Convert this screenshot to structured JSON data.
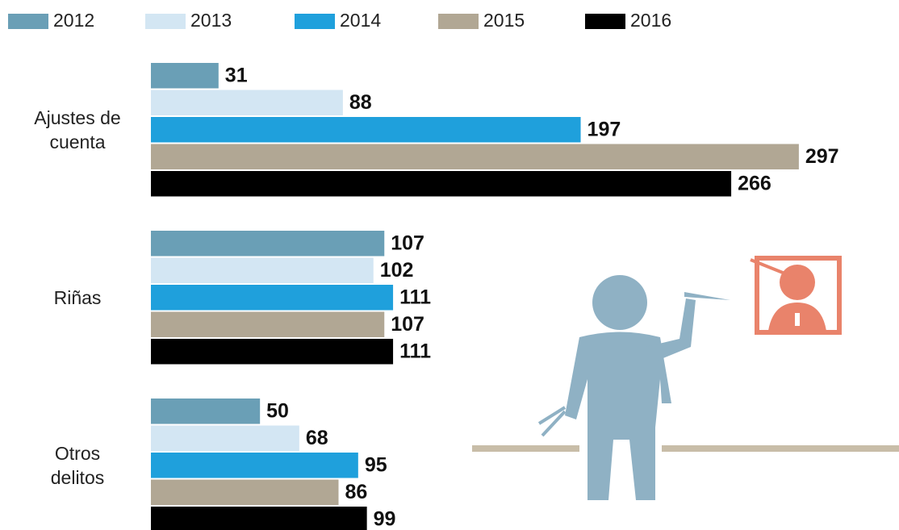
{
  "chart_data": {
    "type": "bar",
    "orientation": "horizontal",
    "categories": [
      "Ajustes de cuenta",
      "Riñas",
      "Otros delitos"
    ],
    "series": [
      {
        "name": "2012",
        "color": "#6a9fb6",
        "values": [
          31,
          107,
          50
        ]
      },
      {
        "name": "2013",
        "color": "#d3e6f3",
        "values": [
          88,
          102,
          68
        ]
      },
      {
        "name": "2014",
        "color": "#1fa0dc",
        "values": [
          197,
          111,
          95
        ]
      },
      {
        "name": "2015",
        "color": "#b1a794",
        "values": [
          297,
          107,
          86
        ]
      },
      {
        "name": "2016",
        "color": "#000000",
        "values": [
          266,
          111,
          99
        ]
      }
    ],
    "xlim": [
      0,
      300
    ],
    "legend": "top"
  }
}
